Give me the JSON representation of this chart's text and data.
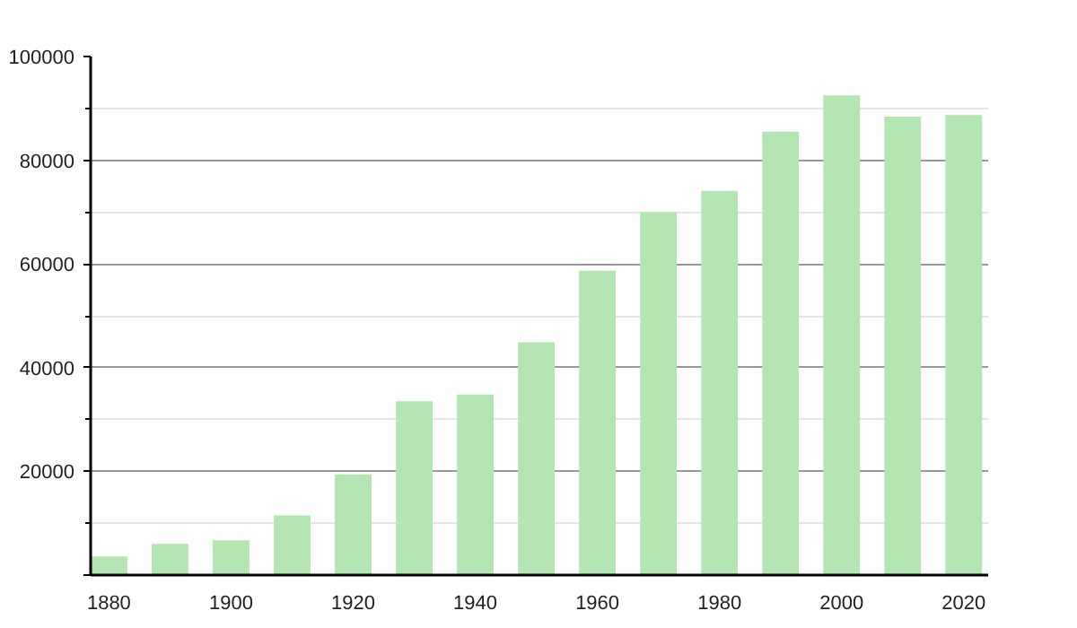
{
  "chart_data": {
    "type": "bar",
    "x": [
      1880,
      1890,
      1900,
      1910,
      1920,
      1930,
      1940,
      1950,
      1960,
      1970,
      1980,
      1990,
      2000,
      2010,
      2020
    ],
    "values": [
      3600,
      6000,
      6700,
      11500,
      19400,
      33500,
      34800,
      44900,
      58700,
      70000,
      74100,
      85500,
      92500,
      88400,
      88700
    ],
    "color": "#b3e6b3",
    "xlim": [
      1877,
      2024
    ],
    "xticks": [
      1880,
      1900,
      1920,
      1940,
      1960,
      1980,
      2000,
      2020
    ],
    "ylim": [
      0,
      100000
    ],
    "yticks": [
      {
        "value": 0,
        "label": null
      },
      20000,
      40000,
      60000,
      80000,
      100000
    ],
    "grid": "y"
  }
}
